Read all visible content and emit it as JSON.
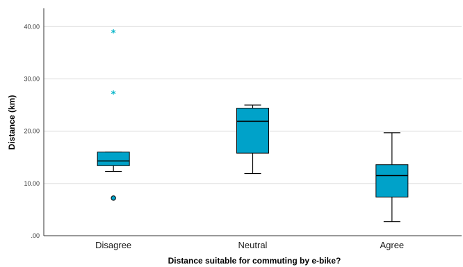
{
  "chart_data": {
    "type": "boxplot",
    "xlabel": "Distance suitable for commuting by e-bike?",
    "ylabel": "Distance (km)",
    "ylim": [
      0,
      43.5
    ],
    "yticks": [
      0,
      10,
      20,
      30,
      40
    ],
    "ytick_labels": [
      ".00",
      "10.00",
      "20.00",
      "30.00",
      "40.00"
    ],
    "grid": "horizontal",
    "categories": [
      "Disagree",
      "Neutral",
      "Agree"
    ],
    "boxes": [
      {
        "category": "Disagree",
        "whisker_low": 12.3,
        "q1": 13.4,
        "median": 14.3,
        "q3": 16.0,
        "whisker_high": 16.0,
        "outliers": [
          7.2
        ],
        "extremes": [
          27.3,
          39.0
        ]
      },
      {
        "category": "Neutral",
        "whisker_low": 11.9,
        "q1": 15.8,
        "median": 21.9,
        "q3": 24.4,
        "whisker_high": 25.0,
        "outliers": [],
        "extremes": []
      },
      {
        "category": "Agree",
        "whisker_low": 2.7,
        "q1": 7.4,
        "median": 11.5,
        "q3": 13.6,
        "whisker_high": 19.7,
        "outliers": [],
        "extremes": []
      }
    ],
    "colors": {
      "box_fill": "#00a2c9",
      "outlier": "#00a2c9",
      "extreme": "#00b4c8",
      "grid": "#d9d9d9",
      "axis": "#333333"
    }
  }
}
